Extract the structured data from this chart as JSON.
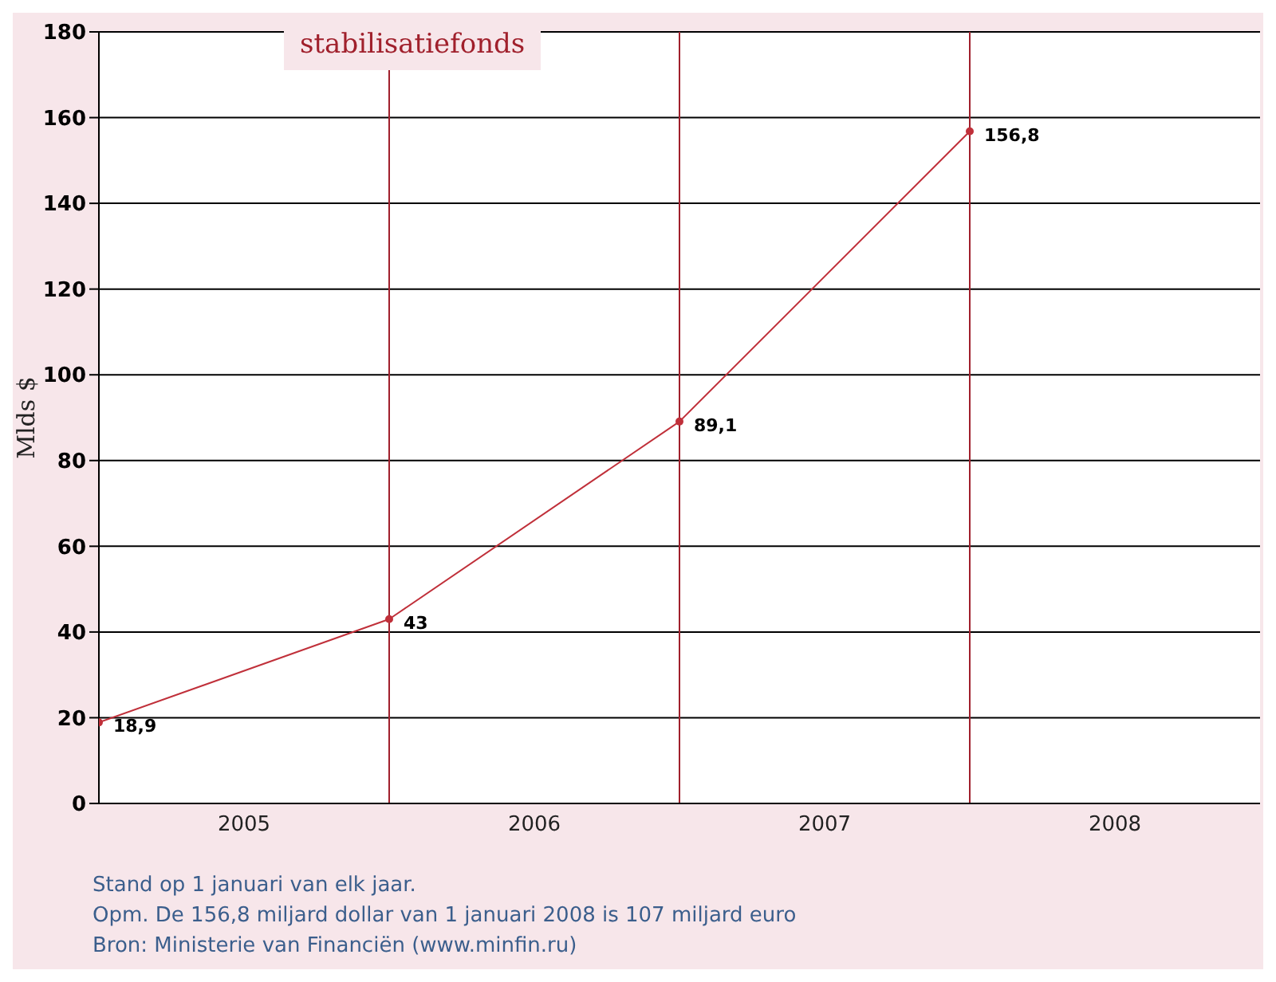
{
  "chart_data": {
    "type": "line",
    "title": "stabilisatiefonds",
    "ylabel": "Mlds $",
    "x": [
      2005,
      2006,
      2007,
      2008
    ],
    "series": [
      {
        "color": "#c0303a",
        "values": [
          18.9,
          43,
          89.1,
          156.8
        ],
        "value_labels": [
          "18,9",
          "43",
          "89,1",
          "156,8"
        ]
      }
    ],
    "xlim": [
      2005,
      2009
    ],
    "xticks": [
      {
        "value": 2005.5,
        "label": "2005"
      },
      {
        "value": 2006.5,
        "label": "2006"
      },
      {
        "value": 2007.5,
        "label": "2007"
      },
      {
        "value": 2008.5,
        "label": "2008"
      }
    ],
    "ylim": [
      0,
      180
    ],
    "yticks": [
      0,
      20,
      40,
      60,
      80,
      100,
      120,
      140,
      160,
      180
    ],
    "grid": "y",
    "marker": "circle",
    "line_style": "solid",
    "ref_lines": [
      {
        "axis": "x",
        "value": 2006,
        "color": "#a0202c"
      },
      {
        "axis": "x",
        "value": 2007,
        "color": "#a0202c"
      },
      {
        "axis": "x",
        "value": 2008,
        "color": "#a0202c"
      }
    ],
    "annotations": [
      "Stand op 1 januari van elk jaar.",
      "Opm. De 156,8 miljard dollar van 1 januari 2008 is 107 miljard euro",
      "Bron: Ministerie van Financiën (www.minfin.ru)"
    ]
  }
}
